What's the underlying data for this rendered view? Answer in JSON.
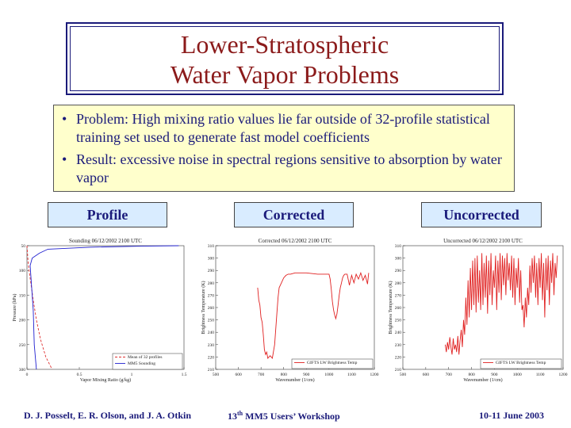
{
  "title": {
    "line1": "Lower-Stratospheric",
    "line2": "Water Vapor Problems"
  },
  "bullets": [
    "Problem: High mixing ratio values lie far outside of 32-profile statistical training set used to generate fast model coefficients",
    "Result: excessive noise in spectral regions sensitive to absorption by water vapor"
  ],
  "panel_labels": {
    "profile": "Profile",
    "corrected": "Corrected",
    "uncorrected": "Uncorrected"
  },
  "footer": {
    "authors": "D. J. Posselt, E. R. Olson, and J. A. Otkin",
    "workshop_sup": "13th",
    "workshop_main": "13",
    "workshop_suffix": "th",
    "workshop_rest": " MM5 Users’ Workshop",
    "date": "10-11 June 2003"
  },
  "colors": {
    "title": "#8b1a1a",
    "text": "#1a1a7a",
    "bullet_bg": "#ffffcc",
    "label_bg": "#d9ecff"
  },
  "chart_data": [
    {
      "type": "line",
      "title": "Sounding  06/12/2002 2100 UTC",
      "xlabel": "Vapor Mixing Ratio (g/kg)",
      "ylabel": "Pressure (hPa)",
      "xlim": [
        0,
        1.5
      ],
      "ylim": [
        300,
        50
      ],
      "x_ticks": [
        "0",
        "0.5",
        "1",
        "1.5"
      ],
      "y_ticks": [
        "50",
        "100",
        "150",
        "200",
        "250",
        "300"
      ],
      "series": [
        {
          "name": "Mean of 32 profiles",
          "color": "#e03030",
          "style": "dashed",
          "x": [
            0.0,
            0.01,
            0.02,
            0.04,
            0.06,
            0.09,
            0.13,
            0.18,
            0.24
          ],
          "y": [
            50,
            80,
            100,
            130,
            160,
            200,
            240,
            275,
            300
          ]
        },
        {
          "name": "MM5 Sounding",
          "color": "#2020d0",
          "style": "solid",
          "x": [
            1.45,
            1.1,
            0.6,
            0.2,
            0.12,
            0.05,
            0.03,
            0.04,
            0.06,
            0.07,
            0.09
          ],
          "y": [
            50,
            51,
            53,
            57,
            65,
            75,
            90,
            120,
            180,
            250,
            300
          ]
        }
      ],
      "legend": [
        "Mean of 32 profiles",
        "MM5 Sounding"
      ]
    },
    {
      "type": "line",
      "title": "Corrected  06/12/2002 2100 UTC",
      "xlabel": "Wavenumber (1/cm)",
      "ylabel": "Brightness Temperature (K)",
      "xlim": [
        500,
        1200
      ],
      "ylim": [
        210,
        310
      ],
      "x_ticks": [
        "500",
        "600",
        "700",
        "800",
        "900",
        "1000",
        "1100",
        "1200"
      ],
      "y_ticks": [
        "210",
        "220",
        "230",
        "240",
        "250",
        "260",
        "270",
        "280",
        "290",
        "300",
        "310"
      ],
      "series": [
        {
          "name": "GIFTS LW Brightness Temp",
          "color": "#e02020",
          "x": [
            685,
            690,
            695,
            700,
            705,
            710,
            715,
            720,
            725,
            730,
            740,
            750,
            760,
            770,
            775,
            780,
            790,
            800,
            810,
            820,
            830,
            850,
            900,
            950,
            1000,
            1005,
            1010,
            1015,
            1020,
            1025,
            1030,
            1035,
            1040,
            1045,
            1050,
            1055,
            1060,
            1065,
            1070,
            1075,
            1080,
            1090,
            1100,
            1110,
            1120,
            1130,
            1140,
            1150,
            1160,
            1170,
            1175
          ],
          "y": [
            276,
            266,
            262,
            252,
            248,
            238,
            226,
            222,
            224,
            219,
            221,
            219,
            230,
            255,
            268,
            276,
            280,
            284,
            286,
            287,
            287,
            288,
            288,
            287,
            287,
            283,
            275,
            265,
            258,
            254,
            251,
            255,
            262,
            270,
            276,
            280,
            284,
            286,
            287,
            287,
            287,
            278,
            286,
            280,
            287,
            283,
            288,
            282,
            286,
            279,
            288
          ]
        }
      ],
      "legend": [
        "GIFTS LW Brightness Temp"
      ]
    },
    {
      "type": "line",
      "title": "Uncorrected  06/12/2002 2100 UTC",
      "xlabel": "Wavenumber (1/cm)",
      "ylabel": "Brightness Temperature (K)",
      "xlim": [
        500,
        1200
      ],
      "ylim": [
        210,
        310
      ],
      "x_ticks": [
        "500",
        "600",
        "700",
        "800",
        "900",
        "1000",
        "1100",
        "1200"
      ],
      "y_ticks": [
        "210",
        "220",
        "230",
        "240",
        "250",
        "260",
        "270",
        "280",
        "290",
        "300",
        "310"
      ],
      "series": [
        {
          "name": "GIFTS LW Brightness Temp",
          "color": "#e02020",
          "x": [
            685,
            690,
            695,
            700,
            705,
            710,
            715,
            720,
            725,
            730,
            735,
            740,
            745,
            750,
            755,
            760,
            765,
            770,
            775,
            780,
            785,
            790,
            795,
            800,
            805,
            810,
            815,
            820,
            825,
            830,
            835,
            840,
            845,
            850,
            855,
            860,
            865,
            870,
            875,
            880,
            885,
            890,
            895,
            900,
            905,
            910,
            915,
            920,
            925,
            930,
            935,
            940,
            945,
            950,
            955,
            960,
            965,
            970,
            975,
            980,
            985,
            990,
            995,
            1000,
            1005,
            1010,
            1015,
            1020,
            1025,
            1030,
            1035,
            1040,
            1045,
            1050,
            1055,
            1060,
            1065,
            1070,
            1075,
            1080,
            1085,
            1090,
            1095,
            1100,
            1105,
            1110,
            1115,
            1120,
            1125,
            1130,
            1135,
            1140,
            1145,
            1150,
            1155,
            1160,
            1165,
            1170,
            1175
          ],
          "y": [
            230,
            224,
            232,
            226,
            236,
            228,
            222,
            235,
            226,
            230,
            224,
            237,
            222,
            233,
            242,
            228,
            250,
            238,
            268,
            246,
            282,
            252,
            292,
            258,
            298,
            262,
            300,
            256,
            302,
            264,
            290,
            258,
            304,
            262,
            296,
            268,
            302,
            255,
            298,
            270,
            304,
            262,
            290,
            276,
            302,
            258,
            298,
            272,
            304,
            266,
            302,
            278,
            300,
            270,
            304,
            282,
            296,
            274,
            302,
            268,
            300,
            262,
            292,
            276,
            300,
            264,
            290,
            258,
            262,
            244,
            268,
            252,
            276,
            262,
            294,
            272,
            300,
            280,
            302,
            268,
            296,
            262,
            300,
            276,
            304,
            266,
            296,
            252,
            300,
            274,
            302,
            262,
            298,
            280,
            304,
            270,
            296,
            284,
            302
          ]
        }
      ],
      "legend": [
        "GIFTS LW Brightness Temp"
      ]
    }
  ]
}
